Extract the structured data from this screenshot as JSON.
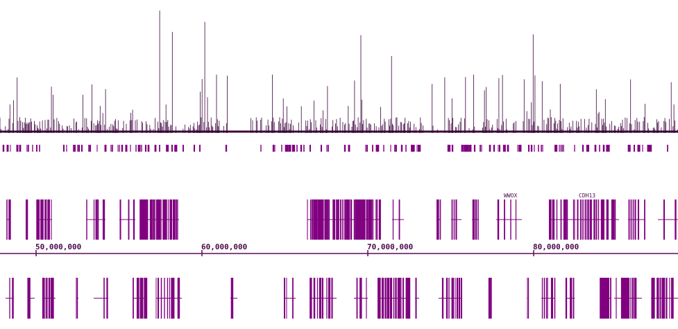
{
  "ruler": {
    "xlim": [
      47824000,
      88703000
    ],
    "ticks": [
      {
        "value": 50000000,
        "label": "50,000,000"
      },
      {
        "value": 60000000,
        "label": "60,000,000"
      },
      {
        "value": 70000000,
        "label": "70,000,000"
      },
      {
        "value": 80000000,
        "label": "80,000,000"
      }
    ]
  },
  "genes": [
    {
      "label": "WWOX"
    },
    {
      "label": "CDH13"
    }
  ]
}
